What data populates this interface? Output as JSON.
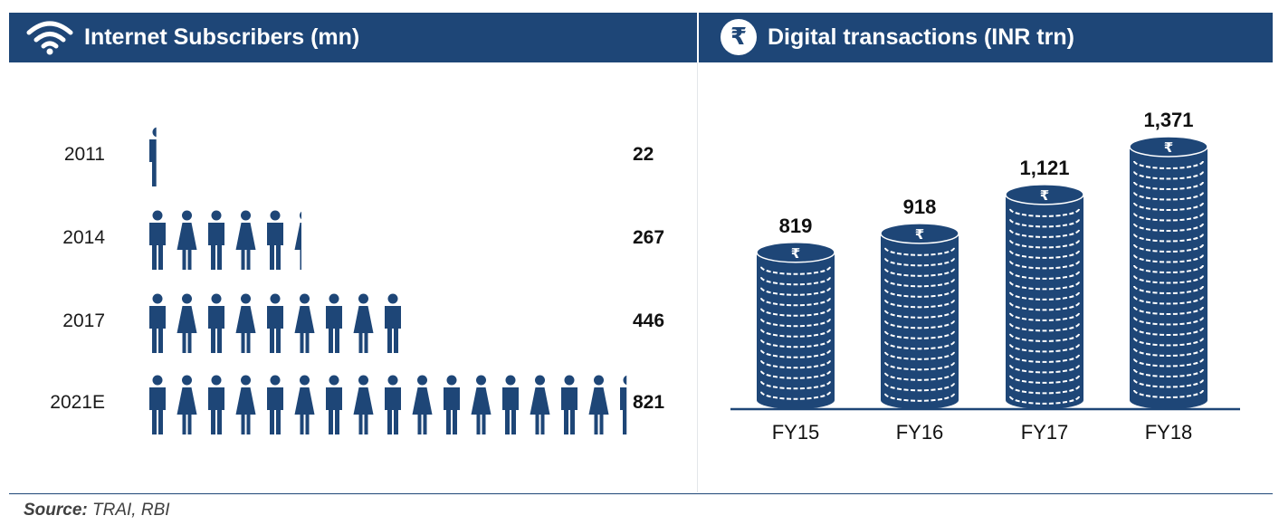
{
  "colors": {
    "primary": "#1e4677",
    "text": "#111111"
  },
  "left_panel": {
    "icon": "wifi-icon",
    "title": "Internet Subscribers (mn)"
  },
  "right_panel": {
    "icon": "rupee-icon",
    "icon_glyph": "₹",
    "title": "Digital transactions (INR trn)"
  },
  "source": {
    "prefix": "Source:",
    "text": "TRAI, RBI"
  },
  "chart_data": [
    {
      "type": "bar",
      "orientation": "horizontal",
      "title": "Internet Subscribers (mn)",
      "categories": [
        "2011",
        "2014",
        "2017",
        "2021E"
      ],
      "values": [
        22,
        267,
        446,
        821
      ],
      "value_labels": [
        "22",
        "267",
        "446",
        "821"
      ]
    },
    {
      "type": "bar",
      "title": "Digital transactions (INR trn)",
      "categories": [
        "FY15",
        "FY16",
        "FY17",
        "FY18"
      ],
      "values": [
        819,
        918,
        1121,
        1371
      ],
      "value_labels": [
        "819",
        "918",
        "1,121",
        "1,371"
      ]
    }
  ]
}
